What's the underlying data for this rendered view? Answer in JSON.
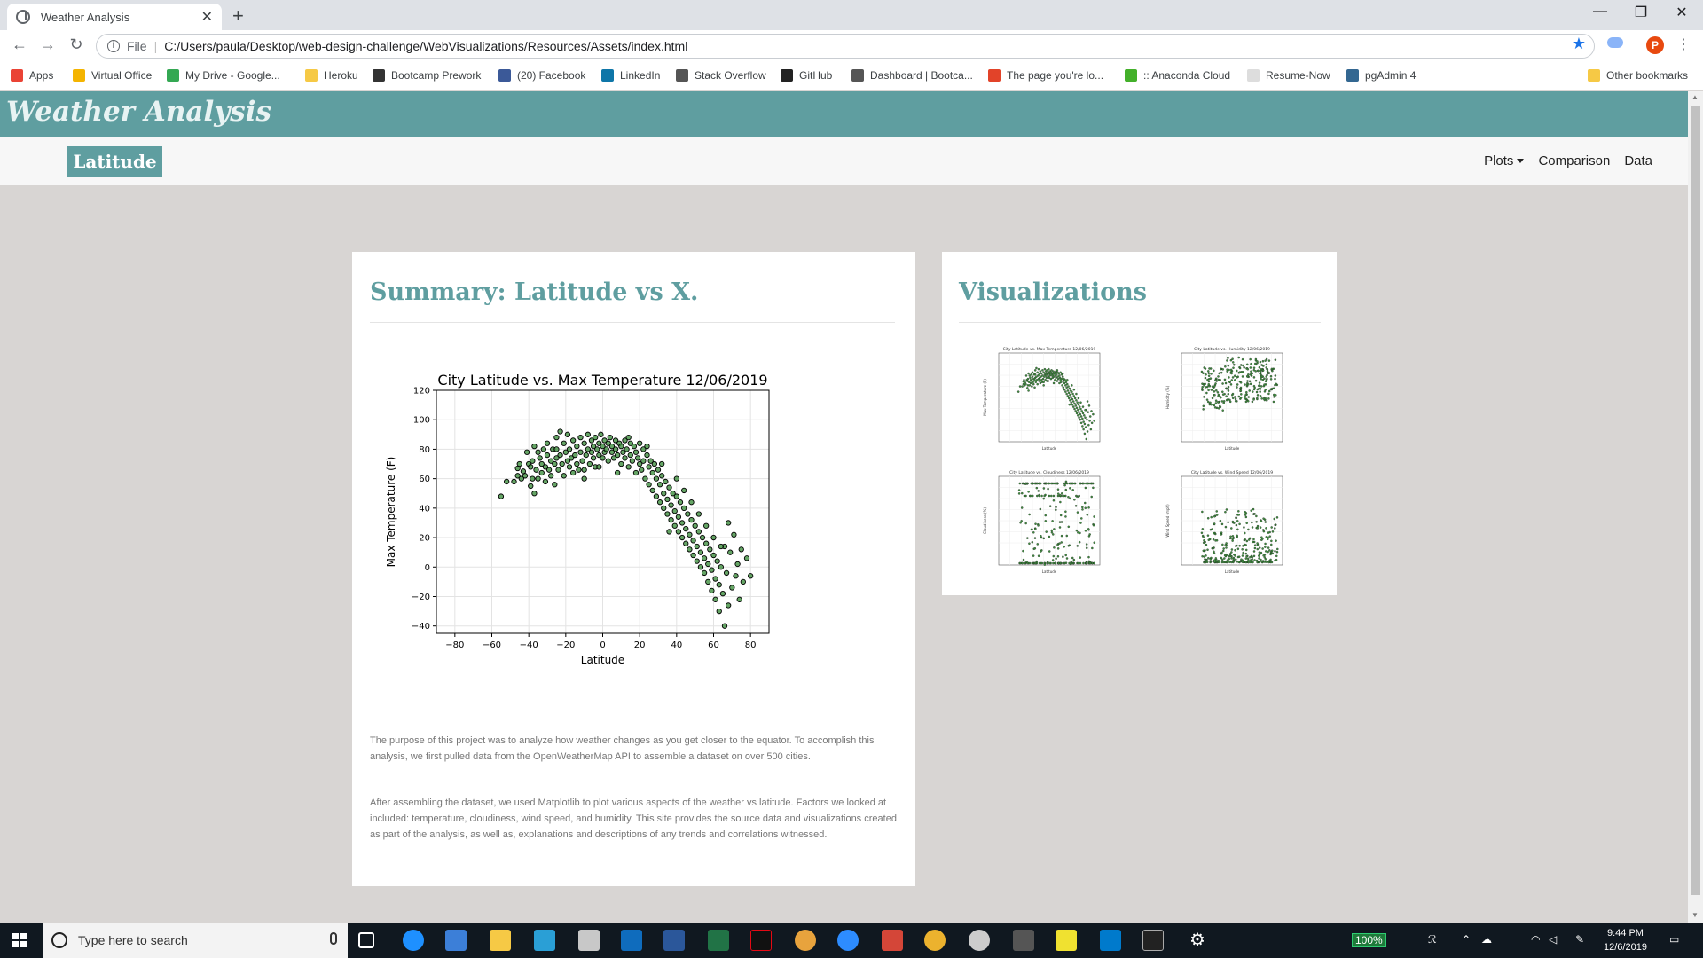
{
  "browser": {
    "tab_title": "Weather Analysis",
    "new_tab": "+",
    "url_scheme": "File",
    "url": "C:/Users/paula/Desktop/web-design-challenge/WebVisualizations/Resources/Assets/index.html",
    "profile_initial": "P"
  },
  "bookmarks": [
    {
      "label": "Apps",
      "color": "#ea4335"
    },
    {
      "label": "Virtual Office",
      "color": "#f4b400"
    },
    {
      "label": "My Drive - Google...",
      "color": "#34a853"
    },
    {
      "label": "Heroku",
      "color": "#f6c945"
    },
    {
      "label": "Bootcamp Prework",
      "color": "#333333"
    },
    {
      "label": "(20) Facebook",
      "color": "#3b5998"
    },
    {
      "label": "LinkedIn",
      "color": "#0e76a8"
    },
    {
      "label": "Stack Overflow",
      "color": "#555555"
    },
    {
      "label": "GitHub",
      "color": "#222222"
    },
    {
      "label": "Dashboard | Bootca...",
      "color": "#555555"
    },
    {
      "label": "The page you're lo...",
      "color": "#e24329"
    },
    {
      "label": ":: Anaconda Cloud",
      "color": "#43b02a"
    },
    {
      "label": "Resume-Now",
      "color": "#dddddd"
    },
    {
      "label": "pgAdmin 4",
      "color": "#336791"
    },
    {
      "label": "Other bookmarks",
      "color": "#f6c945"
    }
  ],
  "site": {
    "brand": "Weather Analysis",
    "active_nav": "Latitude",
    "nav": [
      "Plots",
      "Comparison",
      "Data"
    ]
  },
  "summary": {
    "heading": "Summary: Latitude vs X.",
    "paragraph_1": "The purpose of this project was to analyze how weather changes as you get closer to the equator. To accomplish this analysis, we first pulled data from the OpenWeatherMap API to assemble a dataset on over 500 cities.",
    "paragraph_2": "After assembling the dataset, we used Matplotlib to plot various aspects of the weather vs latitude. Factors we looked at included: temperature, cloudiness, wind speed, and humidity. This site provides the source data and visualizations created as part of the analysis, as well as, explanations and descriptions of any trends and correlations witnessed."
  },
  "visualizations": {
    "heading": "Visualizations",
    "thumbnails": [
      {
        "title": "City Latitude vs. Max Temperature 12/06/2019",
        "xlabel": "Latitude",
        "ylabel": "Max Temperature (F)",
        "kind": "temp"
      },
      {
        "title": "City Latitude vs. Humidity 12/06/2019",
        "xlabel": "Latitude",
        "ylabel": "Humidity (%)",
        "kind": "humidity"
      },
      {
        "title": "City Latitude vs. Cloudiness 12/06/2019",
        "xlabel": "Latitude",
        "ylabel": "Cloudiness (%)",
        "kind": "cloud"
      },
      {
        "title": "City Latitude vs. Wind Speed 12/06/2019",
        "xlabel": "Latitude",
        "ylabel": "Wind Speed (mph)",
        "kind": "wind"
      }
    ]
  },
  "chart_data": {
    "type": "scatter",
    "title": "City Latitude vs. Max Temperature 12/06/2019",
    "xlabel": "Latitude",
    "ylabel": "Max Temperature (F)",
    "xlim": [
      -90,
      90
    ],
    "ylim": [
      -45,
      120
    ],
    "xticks": [
      -80,
      -60,
      -40,
      -20,
      0,
      20,
      40,
      60,
      80
    ],
    "yticks": [
      -40,
      -20,
      0,
      20,
      40,
      60,
      80,
      100,
      120
    ],
    "grid": true,
    "marker_fill": "#3f8f3f",
    "marker_edge": "#000000",
    "points": [
      [
        -55,
        48
      ],
      [
        -52,
        58
      ],
      [
        -48,
        58
      ],
      [
        -46,
        62
      ],
      [
        -46,
        67
      ],
      [
        -45,
        70
      ],
      [
        -44,
        60
      ],
      [
        -43,
        65
      ],
      [
        -42,
        62
      ],
      [
        -41,
        78
      ],
      [
        -40,
        70
      ],
      [
        -39,
        55
      ],
      [
        -39,
        68
      ],
      [
        -38,
        60
      ],
      [
        -38,
        72
      ],
      [
        -37,
        82
      ],
      [
        -37,
        50
      ],
      [
        -36,
        66
      ],
      [
        -35,
        78
      ],
      [
        -35,
        60
      ],
      [
        -34,
        74
      ],
      [
        -33,
        70
      ],
      [
        -33,
        64
      ],
      [
        -32,
        80
      ],
      [
        -31,
        68
      ],
      [
        -31,
        58
      ],
      [
        -30,
        76
      ],
      [
        -30,
        84
      ],
      [
        -29,
        66
      ],
      [
        -28,
        72
      ],
      [
        -28,
        62
      ],
      [
        -27,
        80
      ],
      [
        -26,
        70
      ],
      [
        -26,
        56
      ],
      [
        -25,
        74
      ],
      [
        -25,
        88
      ],
      [
        -24,
        66
      ],
      [
        -23,
        92
      ],
      [
        -23,
        76
      ],
      [
        -22,
        70
      ],
      [
        -21,
        84
      ],
      [
        -21,
        62
      ],
      [
        -20,
        78
      ],
      [
        -19,
        72
      ],
      [
        -19,
        90
      ],
      [
        -18,
        68
      ],
      [
        -18,
        80
      ],
      [
        -17,
        74
      ],
      [
        -16,
        86
      ],
      [
        -16,
        64
      ],
      [
        -15,
        76
      ],
      [
        -14,
        82
      ],
      [
        -14,
        70
      ],
      [
        -13,
        66
      ],
      [
        -12,
        88
      ],
      [
        -12,
        78
      ],
      [
        -11,
        72
      ],
      [
        -10,
        84
      ],
      [
        -10,
        60
      ],
      [
        -9,
        76
      ],
      [
        -8,
        90
      ],
      [
        -8,
        80
      ],
      [
        -7,
        70
      ],
      [
        -6,
        86
      ],
      [
        -6,
        78
      ],
      [
        -5,
        82
      ],
      [
        -5,
        74
      ],
      [
        -4,
        88
      ],
      [
        -4,
        68
      ],
      [
        -3,
        80
      ],
      [
        -2,
        84
      ],
      [
        -2,
        76
      ],
      [
        -1,
        90
      ],
      [
        0,
        82
      ],
      [
        0,
        74
      ],
      [
        1,
        86
      ],
      [
        1,
        78
      ],
      [
        2,
        80
      ],
      [
        3,
        84
      ],
      [
        3,
        72
      ],
      [
        4,
        88
      ],
      [
        5,
        78
      ],
      [
        5,
        82
      ],
      [
        6,
        74
      ],
      [
        7,
        86
      ],
      [
        7,
        80
      ],
      [
        8,
        76
      ],
      [
        9,
        84
      ],
      [
        10,
        82
      ],
      [
        10,
        70
      ],
      [
        11,
        78
      ],
      [
        12,
        86
      ],
      [
        12,
        74
      ],
      [
        13,
        80
      ],
      [
        14,
        68
      ],
      [
        15,
        84
      ],
      [
        15,
        76
      ],
      [
        16,
        72
      ],
      [
        17,
        82
      ],
      [
        18,
        78
      ],
      [
        18,
        64
      ],
      [
        19,
        74
      ],
      [
        20,
        84
      ],
      [
        20,
        70
      ],
      [
        21,
        66
      ],
      [
        22,
        80
      ],
      [
        22,
        72
      ],
      [
        23,
        60
      ],
      [
        24,
        76
      ],
      [
        25,
        68
      ],
      [
        25,
        56
      ],
      [
        26,
        72
      ],
      [
        27,
        64
      ],
      [
        27,
        52
      ],
      [
        28,
        70
      ],
      [
        29,
        60
      ],
      [
        29,
        48
      ],
      [
        30,
        66
      ],
      [
        31,
        56
      ],
      [
        31,
        44
      ],
      [
        32,
        62
      ],
      [
        33,
        50
      ],
      [
        33,
        40
      ],
      [
        34,
        58
      ],
      [
        35,
        46
      ],
      [
        35,
        36
      ],
      [
        36,
        54
      ],
      [
        37,
        42
      ],
      [
        37,
        32
      ],
      [
        38,
        50
      ],
      [
        39,
        38
      ],
      [
        39,
        28
      ],
      [
        40,
        48
      ],
      [
        41,
        34
      ],
      [
        41,
        24
      ],
      [
        42,
        44
      ],
      [
        43,
        30
      ],
      [
        43,
        20
      ],
      [
        44,
        40
      ],
      [
        45,
        26
      ],
      [
        45,
        16
      ],
      [
        46,
        36
      ],
      [
        47,
        22
      ],
      [
        47,
        12
      ],
      [
        48,
        32
      ],
      [
        49,
        18
      ],
      [
        49,
        8
      ],
      [
        50,
        28
      ],
      [
        51,
        14
      ],
      [
        51,
        4
      ],
      [
        52,
        24
      ],
      [
        53,
        10
      ],
      [
        53,
        0
      ],
      [
        54,
        20
      ],
      [
        55,
        6
      ],
      [
        55,
        -4
      ],
      [
        56,
        16
      ],
      [
        57,
        2
      ],
      [
        57,
        -10
      ],
      [
        58,
        12
      ],
      [
        59,
        -2
      ],
      [
        59,
        -16
      ],
      [
        60,
        8
      ],
      [
        61,
        -8
      ],
      [
        61,
        -22
      ],
      [
        62,
        4
      ],
      [
        63,
        -12
      ],
      [
        63,
        -30
      ],
      [
        64,
        0
      ],
      [
        65,
        -18
      ],
      [
        66,
        -40
      ],
      [
        66,
        14
      ],
      [
        67,
        -4
      ],
      [
        68,
        -26
      ],
      [
        68,
        30
      ],
      [
        69,
        10
      ],
      [
        70,
        -14
      ],
      [
        71,
        22
      ],
      [
        72,
        -6
      ],
      [
        73,
        2
      ],
      [
        74,
        -22
      ],
      [
        75,
        12
      ],
      [
        76,
        -10
      ],
      [
        78,
        6
      ],
      [
        80,
        -6
      ],
      [
        -2,
        68
      ],
      [
        -10,
        66
      ],
      [
        -25,
        80
      ],
      [
        8,
        64
      ],
      [
        14,
        88
      ],
      [
        24,
        82
      ],
      [
        32,
        70
      ],
      [
        36,
        24
      ],
      [
        40,
        60
      ],
      [
        44,
        52
      ],
      [
        48,
        44
      ],
      [
        52,
        36
      ],
      [
        56,
        28
      ],
      [
        60,
        20
      ],
      [
        64,
        14
      ]
    ]
  }
}
